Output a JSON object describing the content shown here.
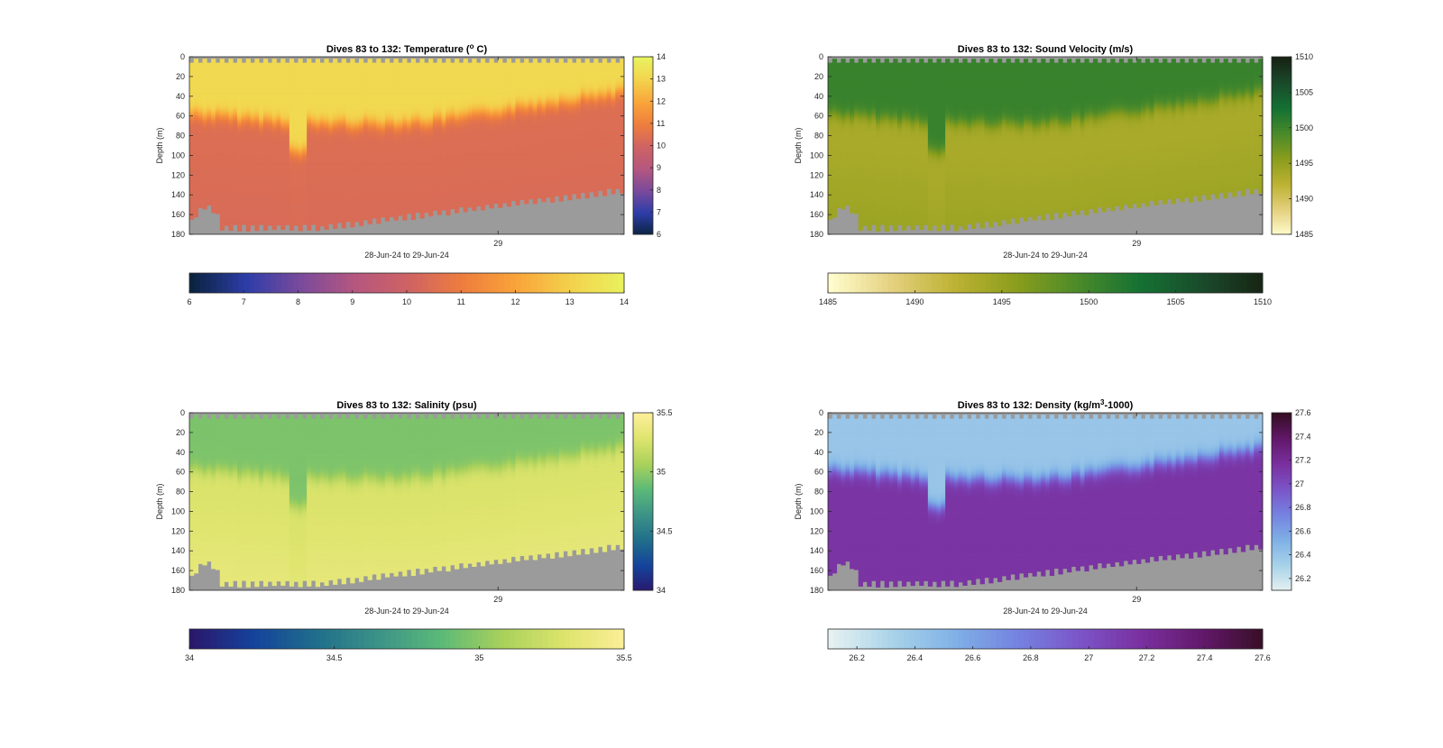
{
  "chart_data": [
    {
      "type": "heatmap",
      "title": "Dives 83 to 132: Temperature (°C)",
      "title_parts": [
        "Dives 83 to 132: Temperature (",
        "o",
        " C)"
      ],
      "ylabel": "Depth (m)",
      "xlabel": "28-Jun-24 to 29-Jun-24",
      "x_ticks": [
        "29"
      ],
      "y_ticks": [
        "0",
        "20",
        "40",
        "60",
        "80",
        "100",
        "120",
        "140",
        "160",
        "180"
      ],
      "ylim": [
        0,
        180
      ],
      "clim": [
        6,
        14
      ],
      "colorbar_ticks": [
        "6",
        "7",
        "8",
        "9",
        "10",
        "11",
        "12",
        "13",
        "14"
      ],
      "horizontal_colorbar_ticks": [
        "6",
        "7",
        "8",
        "9",
        "10",
        "11",
        "12",
        "13",
        "14"
      ],
      "colormap": "thermal",
      "colors": [
        "#0b2340",
        "#2d3da8",
        "#7a4a9c",
        "#b5577f",
        "#cf6363",
        "#ee7e3d",
        "#f9a53a",
        "#f3d34d",
        "#e8f35f"
      ],
      "surface_value": 13.2,
      "mid_value": 10.4,
      "deep_value": 10.3,
      "no_data_color": "#9b9b9b"
    },
    {
      "type": "heatmap",
      "title": "Dives 83 to 132: Sound Velocity (m/s)",
      "title_parts": [
        "Dives 83 to 132: Sound Velocity (m/s)"
      ],
      "ylabel": "Depth (m)",
      "xlabel": "28-Jun-24 to 29-Jun-24",
      "x_ticks": [
        "29"
      ],
      "y_ticks": [
        "0",
        "20",
        "40",
        "60",
        "80",
        "100",
        "120",
        "140",
        "160",
        "180"
      ],
      "ylim": [
        0,
        180
      ],
      "clim": [
        1485,
        1510
      ],
      "colorbar_ticks": [
        "1485",
        "1490",
        "1495",
        "1500",
        "1505",
        "1510"
      ],
      "horizontal_colorbar_ticks": [
        "1485",
        "1490",
        "1495",
        "1500",
        "1505",
        "1510"
      ],
      "colormap": "speed",
      "colors": [
        "#fffdcd",
        "#e4d07e",
        "#bdb233",
        "#8a9d1c",
        "#4a8a2a",
        "#147133",
        "#1a4a2b",
        "#172313"
      ],
      "surface_value": 1500.5,
      "mid_value": 1493.5,
      "deep_value": 1494.5,
      "no_data_color": "#9b9b9b"
    },
    {
      "type": "heatmap",
      "title": "Dives 83 to 132: Salinity (psu)",
      "title_parts": [
        "Dives 83 to 132: Salinity (psu)"
      ],
      "ylabel": "Depth (m)",
      "xlabel": "28-Jun-24 to 29-Jun-24",
      "x_ticks": [
        "29"
      ],
      "y_ticks": [
        "0",
        "20",
        "40",
        "60",
        "80",
        "100",
        "120",
        "140",
        "160",
        "180"
      ],
      "ylim": [
        0,
        180
      ],
      "clim": [
        34,
        35.5
      ],
      "colorbar_ticks": [
        "34",
        "34.5",
        "35",
        "35.5"
      ],
      "horizontal_colorbar_ticks": [
        "34",
        "34.5",
        "35",
        "35.5"
      ],
      "colormap": "haline",
      "colors": [
        "#2a186c",
        "#14439c",
        "#206e8b",
        "#3c9387",
        "#5ab978",
        "#a9d15b",
        "#dde46c",
        "#fdef9a"
      ],
      "surface_value": 34.95,
      "mid_value": 35.28,
      "deep_value": 35.35,
      "no_data_color": "#9b9b9b"
    },
    {
      "type": "heatmap",
      "title": "Dives 83 to 132: Density (kg/m³-1000)",
      "title_parts": [
        "Dives 83 to 132: Density (kg/m",
        "3",
        "-1000)"
      ],
      "ylabel": "Depth (m)",
      "xlabel": "28-Jun-24 to 29-Jun-24",
      "x_ticks": [
        "29"
      ],
      "y_ticks": [
        "0",
        "20",
        "40",
        "60",
        "80",
        "100",
        "120",
        "140",
        "160",
        "180"
      ],
      "ylim": [
        0,
        180
      ],
      "clim": [
        26.1,
        27.6
      ],
      "colorbar_ticks": [
        "26.2",
        "26.4",
        "26.6",
        "26.8",
        "27",
        "27.2",
        "27.4",
        "27.6"
      ],
      "horizontal_colorbar_ticks": [
        "26.2",
        "26.4",
        "26.6",
        "26.8",
        "27",
        "27.2",
        "27.4",
        "27.6"
      ],
      "colormap": "dense",
      "colors": [
        "#e6f1f1",
        "#a9d3e9",
        "#7fb1e6",
        "#7583e0",
        "#7b55c9",
        "#7a309f",
        "#62186a",
        "#360e24"
      ],
      "surface_value": 26.4,
      "mid_value": 27.15,
      "deep_value": 27.15,
      "no_data_color": "#9b9b9b"
    }
  ]
}
